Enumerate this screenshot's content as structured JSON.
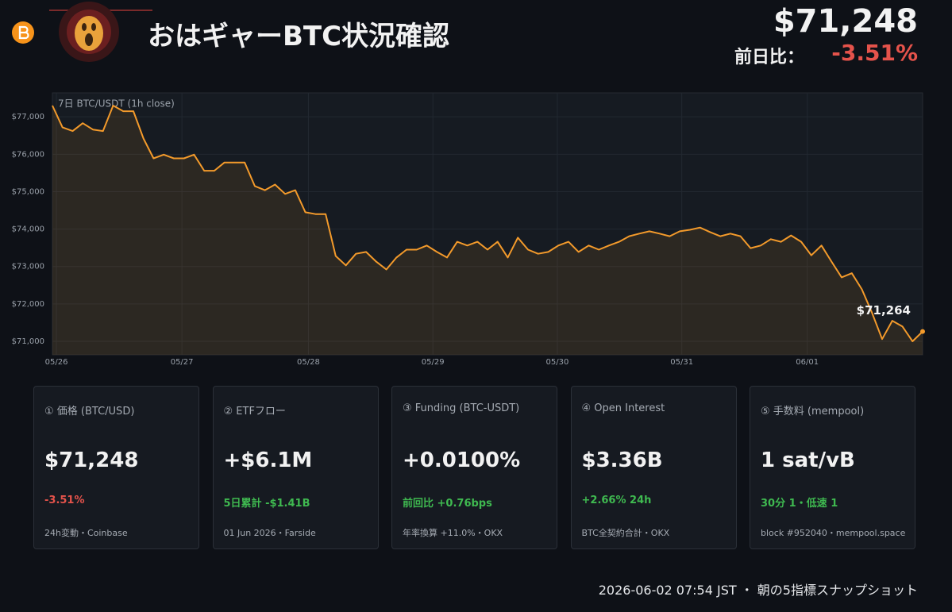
{
  "header": {
    "title": "おはギャーBTC状況確認",
    "price": "$71,248",
    "change_label": "前日比：",
    "change": "-3.51%"
  },
  "chart_data": {
    "type": "line",
    "title": "7日 BTC/USDT (1h close)",
    "color": "#f39a2b",
    "values": [
      77300,
      76720,
      76620,
      76830,
      76660,
      76620,
      77300,
      77150,
      77150,
      76420,
      75890,
      75990,
      75890,
      75890,
      75990,
      75560,
      75560,
      75780,
      75780,
      75780,
      75150,
      75040,
      75190,
      74940,
      75040,
      74450,
      74400,
      74400,
      73280,
      73030,
      73340,
      73390,
      73130,
      72920,
      73240,
      73450,
      73450,
      73560,
      73390,
      73240,
      73660,
      73560,
      73660,
      73450,
      73660,
      73240,
      73770,
      73450,
      73340,
      73390,
      73560,
      73660,
      73390,
      73560,
      73450,
      73560,
      73660,
      73810,
      73880,
      73940,
      73880,
      73810,
      73940,
      73980,
      74040,
      73920,
      73810,
      73880,
      73810,
      73490,
      73560,
      73730,
      73660,
      73830,
      73660,
      73300,
      73560,
      73130,
      72710,
      72820,
      72390,
      71760,
      71060,
      71550,
      71400,
      71000,
      71264
    ],
    "last_label": "$71,264",
    "xlim": [
      0,
      86
    ],
    "xticks": [
      {
        "value": 0.4,
        "label": "05/26"
      },
      {
        "value": 12.8,
        "label": "05/27"
      },
      {
        "value": 25.3,
        "label": "05/28"
      },
      {
        "value": 37.6,
        "label": "05/29"
      },
      {
        "value": 49.9,
        "label": "05/30"
      },
      {
        "value": 62.2,
        "label": "05/31"
      },
      {
        "value": 74.6,
        "label": "06/01"
      }
    ],
    "ylim": [
      70640,
      77640
    ],
    "yticks": [
      {
        "value": 71000,
        "label": "$71,000"
      },
      {
        "value": 72000,
        "label": "$72,000"
      },
      {
        "value": 73000,
        "label": "$73,000"
      },
      {
        "value": 74000,
        "label": "$74,000"
      },
      {
        "value": 75000,
        "label": "$75,000"
      },
      {
        "value": 76000,
        "label": "$76,000"
      },
      {
        "value": 77000,
        "label": "$77,000"
      }
    ],
    "grid": true
  },
  "cards": [
    {
      "label": "① 価格 (BTC/USD)",
      "value": "$71,248",
      "sub": "-3.51%",
      "tone": "negative",
      "footer": "24h変動・Coinbase"
    },
    {
      "label": "② ETFフロー",
      "value": "+$6.1M",
      "sub": "5日累計 -$1.41B",
      "tone": "positive",
      "footer": "01 Jun 2026・Farside"
    },
    {
      "label": "③ Funding (BTC-USDT)",
      "value": "+0.0100%",
      "sub": "前回比 +0.76bps",
      "tone": "positive",
      "footer": "年率換算 +11.0%・OKX"
    },
    {
      "label": "④ Open Interest",
      "value": "$3.36B",
      "sub": "+2.66% 24h",
      "tone": "positive",
      "footer": "BTC全契約合計・OKX"
    },
    {
      "label": "⑤ 手数料 (mempool)",
      "value": "1 sat/vB",
      "sub": "30分 1・低速 1",
      "tone": "positive",
      "footer": "block #952040・mempool.space"
    }
  ],
  "footer": "2026-06-02 07:54 JST ・ 朝の5指標スナップショット"
}
